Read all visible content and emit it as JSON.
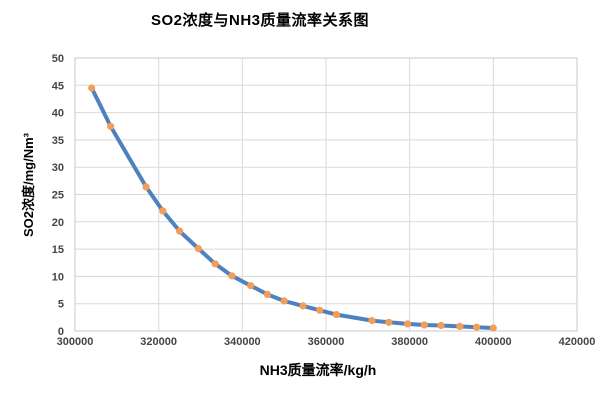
{
  "chart_data": {
    "type": "line",
    "title": "SO2浓度与NH3质量流率关系图",
    "xlabel": "NH3质量流率/kg/h",
    "ylabel": "SO2浓度/mg/Nm³",
    "xlim": [
      300000,
      420000
    ],
    "ylim": [
      0,
      50
    ],
    "x_ticks": [
      300000,
      320000,
      340000,
      360000,
      380000,
      400000,
      420000
    ],
    "y_ticks": [
      0,
      5,
      10,
      15,
      20,
      25,
      30,
      35,
      40,
      45,
      50
    ],
    "grid": true,
    "legend_position": "none",
    "series": [
      {
        "name": "SO2浓度",
        "line_color": "#4E81BD",
        "marker_color": "#F59D56",
        "marker": "circle",
        "points": [
          [
            304000,
            44.5
          ],
          [
            308500,
            37.5
          ],
          [
            317000,
            26.4
          ],
          [
            321000,
            22.0
          ],
          [
            325000,
            18.3
          ],
          [
            329500,
            15.1
          ],
          [
            333500,
            12.3
          ],
          [
            337500,
            10.1
          ],
          [
            342000,
            8.3
          ],
          [
            346000,
            6.7
          ],
          [
            350000,
            5.5
          ],
          [
            354500,
            4.6
          ],
          [
            358500,
            3.8
          ],
          [
            362500,
            3.0
          ],
          [
            371000,
            1.9
          ],
          [
            375000,
            1.6
          ],
          [
            379500,
            1.3
          ],
          [
            383500,
            1.1
          ],
          [
            387500,
            1.0
          ],
          [
            392000,
            0.85
          ],
          [
            396000,
            0.7
          ],
          [
            400000,
            0.55
          ]
        ]
      }
    ]
  },
  "colors": {
    "gridline": "#D9D9D9",
    "plot_border": "#C9C9C9",
    "tick_label": "#454545",
    "background": "#FFFFFF"
  }
}
